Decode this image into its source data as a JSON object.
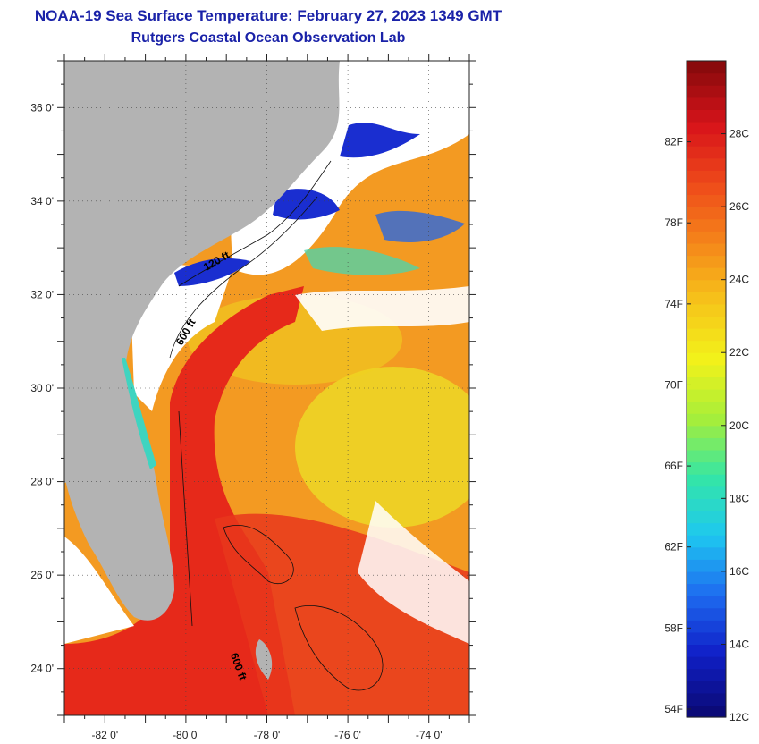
{
  "title": "NOAA-19 Sea Surface Temperature:  February 27, 2023 1349 GMT",
  "subtitle": "Rutgers Coastal Ocean Observation Lab",
  "map": {
    "lon_range": [
      -83,
      -73
    ],
    "lat_range": [
      23,
      37
    ],
    "lat_labels": [
      {
        "value": 36,
        "text": "36 0'"
      },
      {
        "value": 34,
        "text": "34 0'"
      },
      {
        "value": 32,
        "text": "32 0'"
      },
      {
        "value": 30,
        "text": "30 0'"
      },
      {
        "value": 28,
        "text": "28 0'"
      },
      {
        "value": 26,
        "text": "26 0'"
      },
      {
        "value": 24,
        "text": "24 0'"
      }
    ],
    "lon_labels": [
      {
        "value": -82,
        "text": "-82 0'"
      },
      {
        "value": -80,
        "text": "-80 0'"
      },
      {
        "value": -78,
        "text": "-78 0'"
      },
      {
        "value": -76,
        "text": "-76 0'"
      },
      {
        "value": -74,
        "text": "-74 0'"
      }
    ],
    "contour_labels": [
      {
        "text": "120 ft",
        "lon": -79.5,
        "lat": 32.5,
        "rotate": -30
      },
      {
        "text": "600 ft",
        "lon": -80.1,
        "lat": 30.9,
        "rotate": -60
      },
      {
        "text": "600 ft",
        "lon": -78.9,
        "lat": 24.3,
        "rotate": 70
      }
    ],
    "colors": {
      "land": "#b3b3b3",
      "cloud": "#ffffff",
      "warm": "#e8251a",
      "orange": "#f58a1a",
      "yellow": "#eedd22",
      "blue": "#1430c8"
    }
  },
  "colorbar": {
    "min_c": 12,
    "max_c": 30,
    "celsius_labels": [
      {
        "value": 28,
        "text": "28C"
      },
      {
        "value": 26,
        "text": "26C"
      },
      {
        "value": 24,
        "text": "24C"
      },
      {
        "value": 22,
        "text": "22C"
      },
      {
        "value": 20,
        "text": "20C"
      },
      {
        "value": 18,
        "text": "18C"
      },
      {
        "value": 16,
        "text": "16C"
      },
      {
        "value": 14,
        "text": "14C"
      },
      {
        "value": 12,
        "text": "12C"
      }
    ],
    "fahrenheit_labels": [
      {
        "value": 82,
        "text": "82F"
      },
      {
        "value": 78,
        "text": "78F"
      },
      {
        "value": 74,
        "text": "74F"
      },
      {
        "value": 70,
        "text": "70F"
      },
      {
        "value": 66,
        "text": "66F"
      },
      {
        "value": 62,
        "text": "62F"
      },
      {
        "value": 58,
        "text": "58F"
      },
      {
        "value": 54,
        "text": "54F"
      }
    ],
    "colors": [
      "#0b0a78",
      "#1020c8",
      "#1e6cf0",
      "#1ec8f0",
      "#34e6a6",
      "#a6ee3a",
      "#f2f21a",
      "#f6c41a",
      "#f5861a",
      "#ee4a1a",
      "#d8141a",
      "#8a0a0c"
    ]
  }
}
